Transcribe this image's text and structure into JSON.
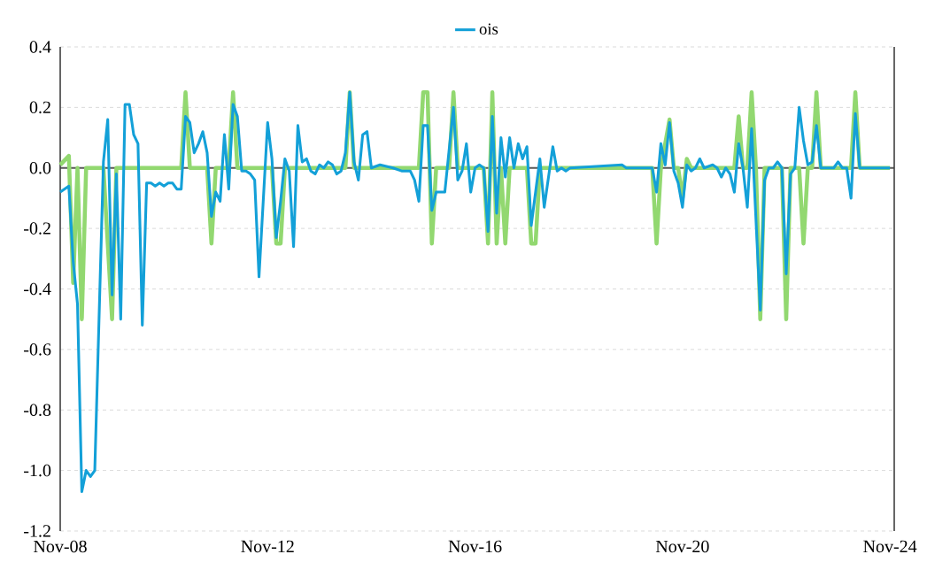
{
  "chart_data": {
    "type": "line",
    "xlim": [
      "2008-11",
      "2024-12"
    ],
    "xticks": [
      {
        "value": "2008-11",
        "label": "Nov-08"
      },
      {
        "value": "2012-11",
        "label": "Nov-12"
      },
      {
        "value": "2016-11",
        "label": "Nov-16"
      },
      {
        "value": "2020-11",
        "label": "Nov-20"
      },
      {
        "value": "2024-11",
        "label": "Nov-24"
      }
    ],
    "ylim": [
      -1.2,
      0.4
    ],
    "yticks": [
      -1.2,
      {
        "value": -1.0,
        "label": "-1.0"
      },
      -0.8,
      -0.6,
      -0.4,
      -0.2,
      {
        "value": 0,
        "label": "0.0"
      },
      0.2,
      0.4
    ],
    "grid": "y",
    "legend": "top",
    "series": [
      {
        "color": "#92d870",
        "x": [
          "2008-11",
          "2009-01",
          "2009-02",
          "2009-03",
          "2009-04",
          "2009-05",
          "2009-09",
          "2009-11",
          "2009-12",
          "2011-03",
          "2011-04",
          "2011-05",
          "2011-09",
          "2011-10",
          "2011-11",
          "2012-02",
          "2012-03",
          "2012-04",
          "2012-12",
          "2013-01",
          "2013-02",
          "2013-03",
          "2014-05",
          "2014-06",
          "2014-07",
          "2015-10",
          "2015-11",
          "2015-12",
          "2016-01",
          "2016-02",
          "2016-05",
          "2016-06",
          "2016-07",
          "2017-01",
          "2017-02",
          "2017-03",
          "2017-04",
          "2017-05",
          "2017-06",
          "2017-07",
          "2017-11",
          "2017-12",
          "2018-01",
          "2018-02",
          "2020-04",
          "2020-05",
          "2020-06",
          "2020-08",
          "2020-09",
          "2020-10",
          "2020-11",
          "2020-12",
          "2021-01",
          "2021-11",
          "2021-12",
          "2022-01",
          "2022-02",
          "2022-03",
          "2022-04",
          "2022-05",
          "2022-06",
          "2022-10",
          "2022-11",
          "2022-12",
          "2023-02",
          "2023-03",
          "2023-04",
          "2023-05",
          "2023-06",
          "2023-07",
          "2024-02",
          "2024-03",
          "2024-04",
          "2024-11"
        ],
        "values": [
          0.01,
          0.04,
          -0.38,
          0,
          -0.5,
          0,
          0,
          -0.5,
          0,
          0,
          0.25,
          0,
          0,
          -0.25,
          0,
          0,
          0.25,
          0,
          0,
          -0.25,
          -0.25,
          0,
          0,
          0.25,
          0,
          0,
          0.25,
          0.25,
          -0.25,
          0,
          0,
          0.25,
          0,
          0,
          -0.25,
          0.25,
          -0.25,
          0,
          -0.25,
          0,
          0,
          -0.25,
          -0.25,
          0,
          0,
          -0.25,
          0,
          0.16,
          0,
          0,
          -0.1,
          0.03,
          0,
          0,
          0.17,
          0,
          0,
          0.25,
          0,
          -0.5,
          0,
          0,
          -0.5,
          0,
          0,
          -0.25,
          0,
          0,
          0.25,
          0,
          0,
          0.25,
          0,
          0
        ]
      },
      {
        "name": "ois",
        "color": "#13a0d8",
        "x": [
          "2008-11",
          "2009-01",
          "2009-02",
          "2009-03",
          "2009-04",
          "2009-05",
          "2009-06",
          "2009-07",
          "2009-09",
          "2009-10",
          "2009-11",
          "2009-12",
          "2010-01",
          "2010-02",
          "2010-03",
          "2010-04",
          "2010-05",
          "2010-06",
          "2010-07",
          "2010-08",
          "2010-09",
          "2010-10",
          "2010-11",
          "2010-12",
          "2011-01",
          "2011-02",
          "2011-03",
          "2011-04",
          "2011-05",
          "2011-06",
          "2011-07",
          "2011-08",
          "2011-09",
          "2011-10",
          "2011-11",
          "2011-12",
          "2012-01",
          "2012-02",
          "2012-03",
          "2012-04",
          "2012-05",
          "2012-06",
          "2012-07",
          "2012-08",
          "2012-09",
          "2012-11",
          "2012-12",
          "2013-01",
          "2013-02",
          "2013-03",
          "2013-04",
          "2013-05",
          "2013-06",
          "2013-07",
          "2013-08",
          "2013-09",
          "2013-10",
          "2013-11",
          "2013-12",
          "2014-01",
          "2014-02",
          "2014-03",
          "2014-04",
          "2014-05",
          "2014-06",
          "2014-07",
          "2014-08",
          "2014-09",
          "2014-10",
          "2014-11",
          "2015-01",
          "2015-04",
          "2015-06",
          "2015-07",
          "2015-08",
          "2015-09",
          "2015-10",
          "2015-11",
          "2015-12",
          "2016-01",
          "2016-02",
          "2016-04",
          "2016-06",
          "2016-07",
          "2016-08",
          "2016-09",
          "2016-10",
          "2016-11",
          "2016-12",
          "2017-01",
          "2017-02",
          "2017-03",
          "2017-04",
          "2017-05",
          "2017-06",
          "2017-07",
          "2017-08",
          "2017-09",
          "2017-10",
          "2017-11",
          "2017-12",
          "2018-02",
          "2018-03",
          "2018-05",
          "2018-06",
          "2018-07",
          "2018-08",
          "2018-09",
          "2019-09",
          "2019-10",
          "2020-04",
          "2020-05",
          "2020-06",
          "2020-07",
          "2020-08",
          "2020-09",
          "2020-10",
          "2020-11",
          "2020-12",
          "2021-01",
          "2021-02",
          "2021-03",
          "2021-04",
          "2021-06",
          "2021-07",
          "2021-08",
          "2021-09",
          "2021-10",
          "2021-11",
          "2021-12",
          "2022-01",
          "2022-02",
          "2022-03",
          "2022-05",
          "2022-06",
          "2022-07",
          "2022-08",
          "2022-09",
          "2022-10",
          "2022-11",
          "2022-12",
          "2023-01",
          "2023-02",
          "2023-03",
          "2023-04",
          "2023-05",
          "2023-06",
          "2023-07",
          "2023-10",
          "2023-11",
          "2023-12",
          "2024-01",
          "2024-02",
          "2024-03",
          "2024-04",
          "2024-11"
        ],
        "values": [
          -0.08,
          -0.06,
          -0.31,
          -0.45,
          -1.07,
          -1.0,
          -1.02,
          -1.0,
          0.02,
          0.16,
          -0.42,
          -0.02,
          -0.5,
          0.21,
          0.21,
          0.11,
          0.08,
          -0.52,
          -0.05,
          -0.05,
          -0.06,
          -0.05,
          -0.06,
          -0.05,
          -0.05,
          -0.07,
          -0.07,
          0.17,
          0.15,
          0.05,
          0.08,
          0.12,
          0.05,
          -0.16,
          -0.08,
          -0.11,
          0.11,
          -0.07,
          0.21,
          0.17,
          -0.01,
          -0.01,
          -0.02,
          -0.04,
          -0.36,
          0.15,
          0.03,
          -0.23,
          -0.11,
          0.03,
          -0.01,
          -0.26,
          0.14,
          0.02,
          0.03,
          -0.01,
          -0.02,
          0.01,
          0,
          0.02,
          0.01,
          -0.02,
          -0.01,
          0.05,
          0.25,
          0.02,
          -0.04,
          0.11,
          0.12,
          0,
          0.01,
          0,
          -0.01,
          -0.01,
          -0.01,
          -0.04,
          -0.11,
          0.14,
          0.14,
          -0.14,
          -0.08,
          -0.08,
          0.2,
          -0.04,
          -0.01,
          0.08,
          -0.08,
          0,
          0.01,
          0,
          -0.21,
          0.17,
          -0.15,
          0.1,
          -0.03,
          0.1,
          0,
          0.08,
          0.03,
          0.07,
          -0.19,
          0.03,
          -0.13,
          0.07,
          -0.01,
          0,
          -0.01,
          0,
          0.01,
          0,
          0,
          -0.08,
          0.08,
          0.01,
          0.15,
          -0.01,
          -0.05,
          -0.13,
          0.01,
          -0.01,
          0,
          0.03,
          0,
          0.01,
          0,
          -0.03,
          0,
          -0.02,
          -0.08,
          0.08,
          0,
          -0.13,
          0.13,
          -0.47,
          -0.04,
          0,
          0,
          0.02,
          0,
          -0.35,
          -0.02,
          0,
          0.2,
          0.09,
          0.01,
          0.02,
          0.14,
          0,
          0,
          0.02,
          0,
          0,
          -0.1,
          0.18,
          0,
          0
        ]
      }
    ]
  }
}
